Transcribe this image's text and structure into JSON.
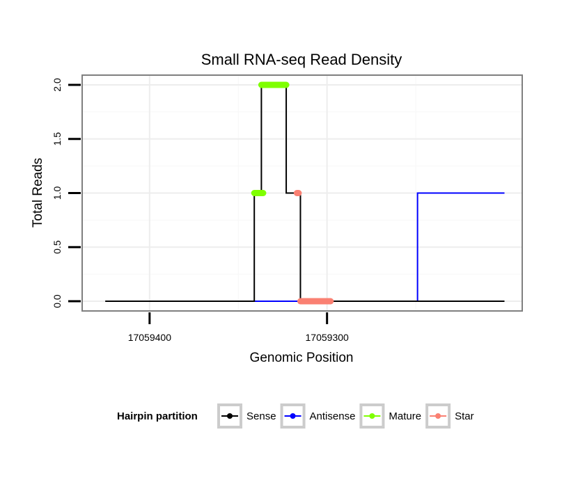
{
  "chart_data": {
    "type": "line",
    "title": "Small RNA-seq Read Density",
    "xlabel": "Genomic Position",
    "ylabel": "Total Reads",
    "x_reversed": true,
    "xlim": [
      17059438,
      17059190
    ],
    "ylim": [
      -0.09,
      2.09
    ],
    "x_ticks": [
      {
        "value": 17059400,
        "label": "17059400"
      },
      {
        "value": 17059300,
        "label": "17059300"
      }
    ],
    "y_ticks": [
      {
        "value": 0,
        "label": "0.0"
      },
      {
        "value": 0.5,
        "label": "0.5"
      },
      {
        "value": 1,
        "label": "1.0"
      },
      {
        "value": 1.5,
        "label": "1.5"
      },
      {
        "value": 2,
        "label": "2.0"
      }
    ],
    "grid": true,
    "series": [
      {
        "name": "Sense",
        "color": "#000000",
        "style": "step",
        "x": [
          17059425,
          17059342,
          17059341,
          17059338,
          17059337,
          17059324,
          17059323,
          17059318,
          17059317,
          17059316,
          17059315,
          17059200
        ],
        "y": [
          0,
          0,
          1,
          1,
          2,
          2,
          1,
          1,
          1,
          1,
          0,
          0
        ]
      },
      {
        "name": "Antisense",
        "color": "#0000ff",
        "style": "step",
        "x": [
          17059342,
          17059250,
          17059249,
          17059200
        ],
        "y": [
          0,
          0,
          1,
          1
        ]
      },
      {
        "name": "Mature",
        "color": "#7fff00",
        "style": "segments",
        "segments": [
          [
            17059341,
            17059336,
            1
          ],
          [
            17059337,
            17059323,
            2
          ]
        ]
      },
      {
        "name": "Star",
        "color": "#fa8072",
        "style": "segments",
        "segments": [
          [
            17059317,
            17059316,
            1
          ],
          [
            17059315,
            17059298,
            0
          ]
        ]
      }
    ]
  },
  "legend": {
    "title": "Hairpin partition",
    "items": [
      {
        "label": "Sense",
        "color": "#000000"
      },
      {
        "label": "Antisense",
        "color": "#0000ff"
      },
      {
        "label": "Mature",
        "color": "#7fff00"
      },
      {
        "label": "Star",
        "color": "#fa8072"
      }
    ]
  }
}
